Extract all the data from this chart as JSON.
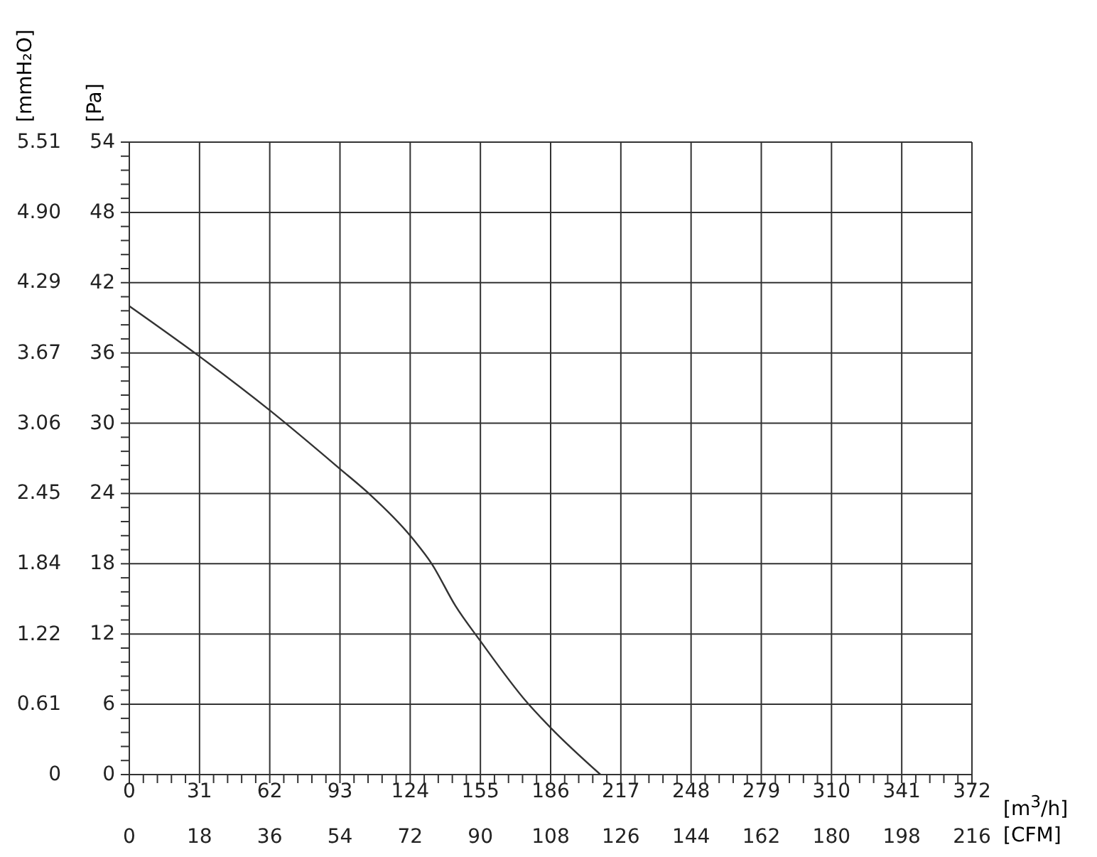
{
  "chart_data": {
    "type": "line",
    "xlabel": "[m$^{3}$/h]",
    "x2label": "[CFM]",
    "ylabel": "[Pa]",
    "y2label": "[mmH₂O]",
    "x": [
      0,
      31,
      62,
      93,
      106.3,
      124,
      133.5,
      144,
      155,
      175.4,
      186,
      208
    ],
    "series": [
      {
        "color": "#333333",
        "values": [
          40.0,
          35.7,
          31.1,
          26.1,
          23.9,
          20.4,
          18.0,
          14.4,
          11.4,
          6.2,
          4.0,
          0
        ]
      }
    ],
    "xlim": [
      0,
      372
    ],
    "xticks": [
      0,
      {
        "value": 6.2,
        "label": null
      },
      {
        "value": 12.4,
        "label": null
      },
      {
        "value": 18.6,
        "label": null
      },
      {
        "value": 24.8,
        "label": null
      },
      31,
      {
        "value": 37.2,
        "label": null
      },
      {
        "value": 43.4,
        "label": null
      },
      {
        "value": 49.6,
        "label": null
      },
      {
        "value": 55.8,
        "label": null
      },
      62,
      {
        "value": 68.2,
        "label": null
      },
      {
        "value": 74.4,
        "label": null
      },
      {
        "value": 80.6,
        "label": null
      },
      {
        "value": 86.8,
        "label": null
      },
      93,
      {
        "value": 99.2,
        "label": null
      },
      {
        "value": 105.4,
        "label": null
      },
      {
        "value": 111.6,
        "label": null
      },
      {
        "value": 117.8,
        "label": null
      },
      124,
      {
        "value": 130.2,
        "label": null
      },
      {
        "value": 136.4,
        "label": null
      },
      {
        "value": 142.6,
        "label": null
      },
      {
        "value": 148.8,
        "label": null
      },
      155,
      {
        "value": 161.2,
        "label": null
      },
      {
        "value": 167.4,
        "label": null
      },
      {
        "value": 173.6,
        "label": null
      },
      {
        "value": 179.8,
        "label": null
      },
      186,
      {
        "value": 192.2,
        "label": null
      },
      {
        "value": 198.4,
        "label": null
      },
      {
        "value": 204.6,
        "label": null
      },
      {
        "value": 210.8,
        "label": null
      },
      217,
      {
        "value": 223.2,
        "label": null
      },
      {
        "value": 229.4,
        "label": null
      },
      {
        "value": 235.6,
        "label": null
      },
      {
        "value": 241.8,
        "label": null
      },
      248,
      {
        "value": 254.2,
        "label": null
      },
      {
        "value": 260.4,
        "label": null
      },
      {
        "value": 266.6,
        "label": null
      },
      {
        "value": 272.8,
        "label": null
      },
      279,
      {
        "value": 285.2,
        "label": null
      },
      {
        "value": 291.4,
        "label": null
      },
      {
        "value": 297.6,
        "label": null
      },
      {
        "value": 303.8,
        "label": null
      },
      310,
      {
        "value": 316.2,
        "label": null
      },
      {
        "value": 322.4,
        "label": null
      },
      {
        "value": 328.6,
        "label": null
      },
      {
        "value": 334.8,
        "label": null
      },
      341,
      {
        "value": 347.2,
        "label": null
      },
      {
        "value": 353.4,
        "label": null
      },
      {
        "value": 359.6,
        "label": null
      },
      {
        "value": 365.8,
        "label": null
      },
      372
    ],
    "x2lim": [
      0,
      216
    ],
    "x2ticks": [
      0,
      18,
      36,
      54,
      72,
      90,
      108,
      126,
      144,
      162,
      180,
      198,
      216
    ],
    "ylim": [
      0,
      54
    ],
    "yticks": [
      0,
      {
        "value": 1.2,
        "label": null
      },
      {
        "value": 2.4,
        "label": null
      },
      {
        "value": 3.6,
        "label": null
      },
      {
        "value": 4.8,
        "label": null
      },
      6,
      {
        "value": 7.2,
        "label": null
      },
      {
        "value": 8.4,
        "label": null
      },
      {
        "value": 9.6,
        "label": null
      },
      {
        "value": 10.8,
        "label": null
      },
      12,
      {
        "value": 13.2,
        "label": null
      },
      {
        "value": 14.4,
        "label": null
      },
      {
        "value": 15.6,
        "label": null
      },
      {
        "value": 16.8,
        "label": null
      },
      18,
      {
        "value": 19.2,
        "label": null
      },
      {
        "value": 20.4,
        "label": null
      },
      {
        "value": 21.6,
        "label": null
      },
      {
        "value": 22.8,
        "label": null
      },
      24,
      {
        "value": 25.2,
        "label": null
      },
      {
        "value": 26.4,
        "label": null
      },
      {
        "value": 27.6,
        "label": null
      },
      {
        "value": 28.8,
        "label": null
      },
      30,
      {
        "value": 31.2,
        "label": null
      },
      {
        "value": 32.4,
        "label": null
      },
      {
        "value": 33.6,
        "label": null
      },
      {
        "value": 34.8,
        "label": null
      },
      36,
      {
        "value": 37.2,
        "label": null
      },
      {
        "value": 38.4,
        "label": null
      },
      {
        "value": 39.6,
        "label": null
      },
      {
        "value": 40.8,
        "label": null
      },
      42,
      {
        "value": 43.2,
        "label": null
      },
      {
        "value": 44.4,
        "label": null
      },
      {
        "value": 45.6,
        "label": null
      },
      {
        "value": 46.8,
        "label": null
      },
      48,
      {
        "value": 49.2,
        "label": null
      },
      {
        "value": 50.4,
        "label": null
      },
      {
        "value": 51.6,
        "label": null
      },
      {
        "value": 52.8,
        "label": null
      },
      54
    ],
    "y2lim": [
      0,
      5.51
    ],
    "y2ticks": [
      0,
      0.61,
      1.22,
      1.84,
      2.45,
      3.06,
      3.67,
      4.29,
      {
        "value": 4.9,
        "label": "4.90"
      },
      5.51
    ],
    "grid": true,
    "legend": false,
    "marker": "none",
    "line_style": "solid"
  }
}
